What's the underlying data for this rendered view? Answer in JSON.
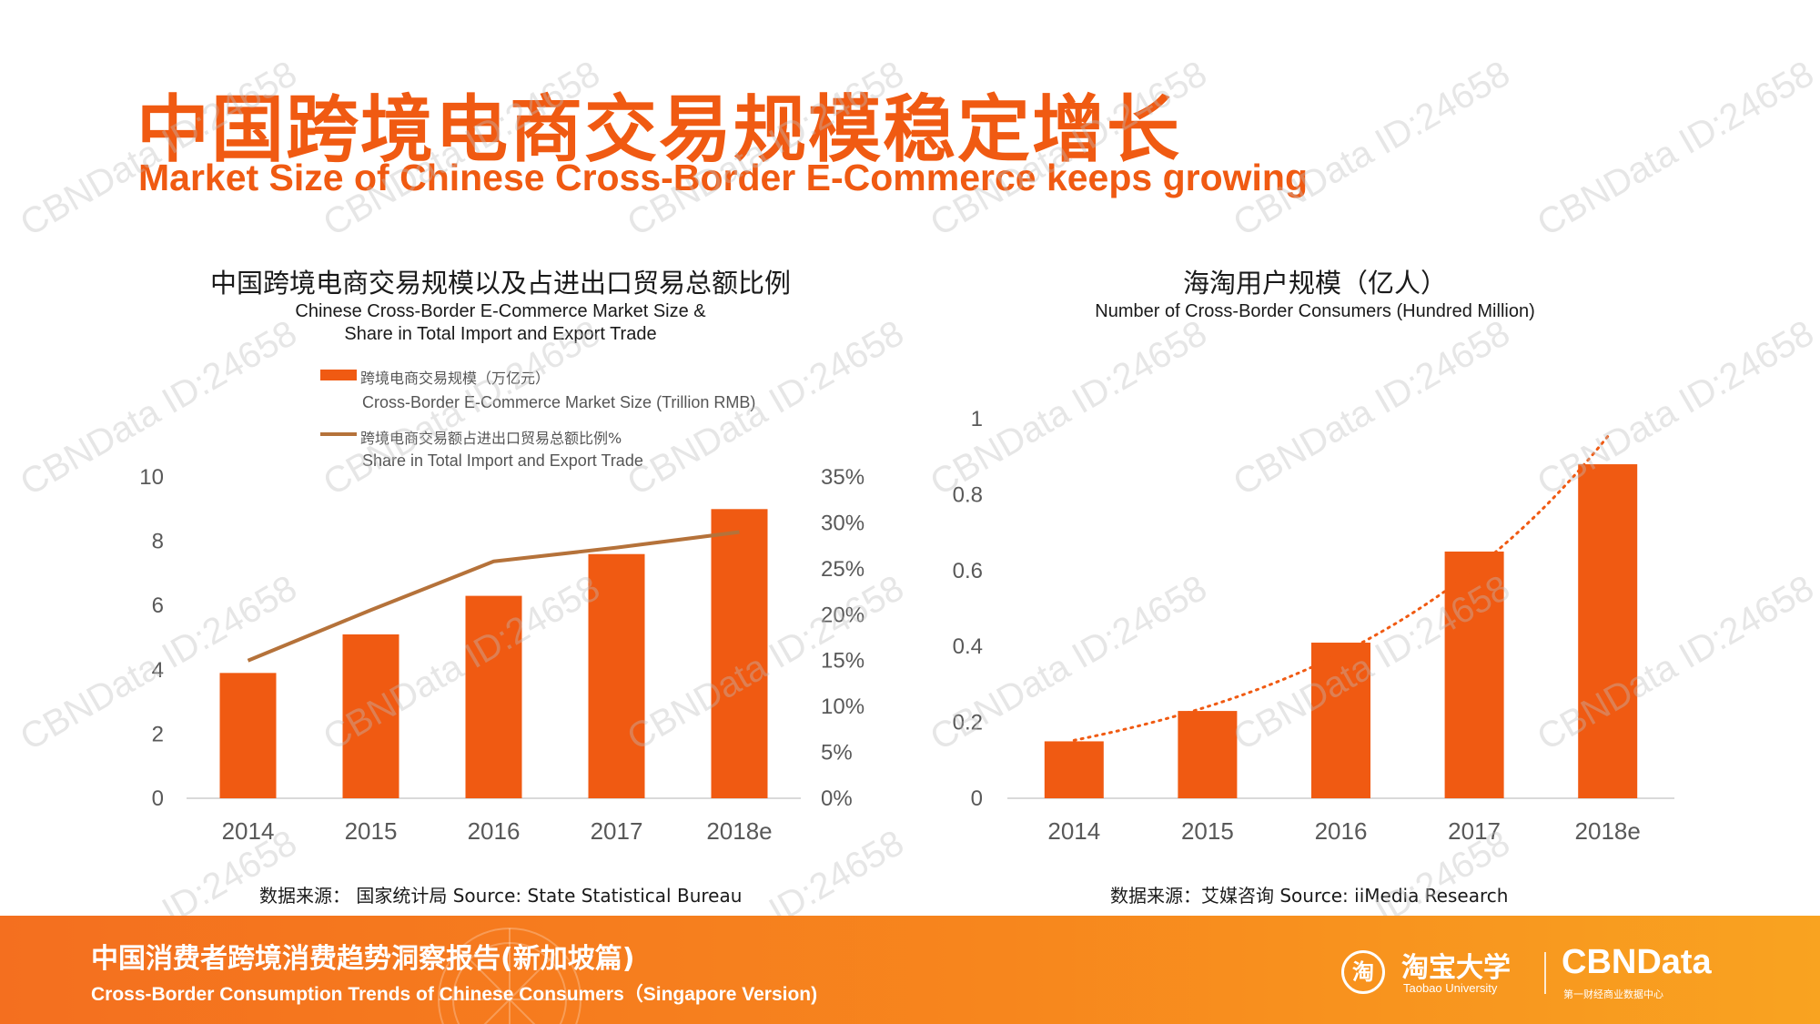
{
  "header": {
    "title_cn": "中国跨境电商交易规模稳定增长",
    "title_en": "Market Size of Chinese Cross-Border E-Commerce keeps growing"
  },
  "chart_data": [
    {
      "type": "bar",
      "title_cn": "中国跨境电商交易规模以及占进出口贸易总额比例",
      "title_en_line1": "Chinese Cross-Border E-Commerce Market Size &",
      "title_en_line2": "Share in Total Import and Export Trade",
      "categories": [
        "2014",
        "2015",
        "2016",
        "2017",
        "2018e"
      ],
      "series": [
        {
          "name": "跨境电商交易规模（万亿元）",
          "name_en": "Cross-Border E-Commerce Market Size (Trillion RMB)",
          "type": "bar",
          "axis": "left",
          "values": [
            3.9,
            5.1,
            6.3,
            7.6,
            9.0
          ]
        },
        {
          "name": "跨境电商交易额占进出口贸易总额比例%",
          "name_en": "Share in Total Import and Export Trade",
          "type": "line",
          "axis": "right",
          "values": [
            15.0,
            20.5,
            25.8,
            27.3,
            29.0
          ]
        }
      ],
      "ylim": [
        0,
        10
      ],
      "yticks": [
        "0",
        "2",
        "4",
        "6",
        "8",
        "10"
      ],
      "y2lim": [
        0,
        35
      ],
      "y2ticks": [
        "0%",
        "5%",
        "10%",
        "15%",
        "20%",
        "25%",
        "30%",
        "35%"
      ],
      "legend": "top",
      "grid": false,
      "source": "数据来源：  国家统计局  Source: State Statistical Bureau"
    },
    {
      "type": "bar",
      "title_cn": "海淘用户规模（亿人）",
      "title_en": "Number of Cross-Border Consumers (Hundred Million)",
      "categories": [
        "2014",
        "2015",
        "2016",
        "2017",
        "2018e"
      ],
      "values": [
        0.15,
        0.23,
        0.41,
        0.65,
        0.88
      ],
      "trendline": "exponential (dotted)",
      "ylim": [
        0,
        1
      ],
      "yticks": [
        "0",
        "0.2",
        "0.4",
        "0.6",
        "0.8",
        "1"
      ],
      "grid": false,
      "source": "数据来源：艾媒咨询   Source: iiMedia Research"
    }
  ],
  "colors": {
    "accent": "#f05a12",
    "line": "#b5723a",
    "trend": "#f05a12",
    "footer_start": "#f46f1f",
    "footer_end": "#f9a320"
  },
  "watermark": "CBNData ID:24658",
  "footer": {
    "title_cn": "中国消费者跨境消费趋势洞察报告(新加坡篇)",
    "title_en": "Cross-Border Consumption Trends of Chinese Consumers（Singapore Version)",
    "logo_icon": "淘",
    "logo_cn": "淘宝大学",
    "logo_en": "Taobao University",
    "logo_cbn": "CBNData",
    "logo_cbn_sub": "第一财经商业数据中心"
  }
}
